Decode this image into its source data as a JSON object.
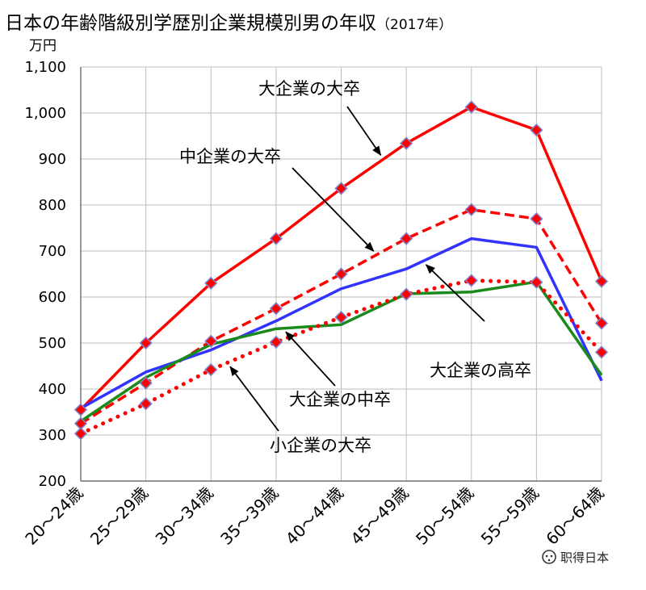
{
  "chart_data": {
    "type": "line",
    "title": "日本の年齢階級別学歴別企業規模別男の年収",
    "title_suffix": "（2017年）",
    "ylabel": "万円",
    "xlabel": "",
    "ylim": [
      200,
      1100
    ],
    "y_ticks": [
      "200",
      "300",
      "400",
      "500",
      "600",
      "700",
      "800",
      "900",
      "1,000",
      "1,100"
    ],
    "categories": [
      "20～24歳",
      "25～29歳",
      "30～34歳",
      "35～39歳",
      "40～44歳",
      "45～49歳",
      "50～54歳",
      "55～59歳",
      "60～64歳"
    ],
    "grid": true,
    "legend": "none",
    "series": [
      {
        "name": "大企業の大卒",
        "values": [
          355,
          500,
          630,
          727,
          836,
          934,
          1013,
          963,
          634
        ],
        "color": "#ff0000",
        "style": "solid",
        "marker": "diamond"
      },
      {
        "name": "中企業の大卒",
        "values": [
          325,
          413,
          504,
          575,
          650,
          727,
          790,
          770,
          543
        ],
        "color": "#ff0000",
        "style": "dashed",
        "marker": "diamond"
      },
      {
        "name": "大企業の高卒",
        "values": [
          358,
          437,
          485,
          548,
          618,
          661,
          727,
          708,
          418
        ],
        "color": "#3333ff",
        "style": "solid",
        "marker": "none"
      },
      {
        "name": "大企業の中卒",
        "values": [
          330,
          425,
          497,
          531,
          540,
          607,
          611,
          633,
          430
        ],
        "color": "#1a8a1a",
        "style": "solid",
        "marker": "none"
      },
      {
        "name": "小企業の大卒",
        "values": [
          303,
          368,
          442,
          502,
          556,
          606,
          636,
          632,
          480
        ],
        "color": "#ff0000",
        "style": "dotted",
        "marker": "diamond"
      }
    ],
    "annotations": [
      {
        "text": "大企業の大卒",
        "series": 0
      },
      {
        "text": "中企業の大卒",
        "series": 1
      },
      {
        "text": "大企業の高卒",
        "series": 2
      },
      {
        "text": "大企業の中卒",
        "series": 3
      },
      {
        "text": "小企業の大卒",
        "series": 4
      }
    ]
  },
  "watermark": {
    "text": "职得日本",
    "icon": "wechat-icon"
  }
}
